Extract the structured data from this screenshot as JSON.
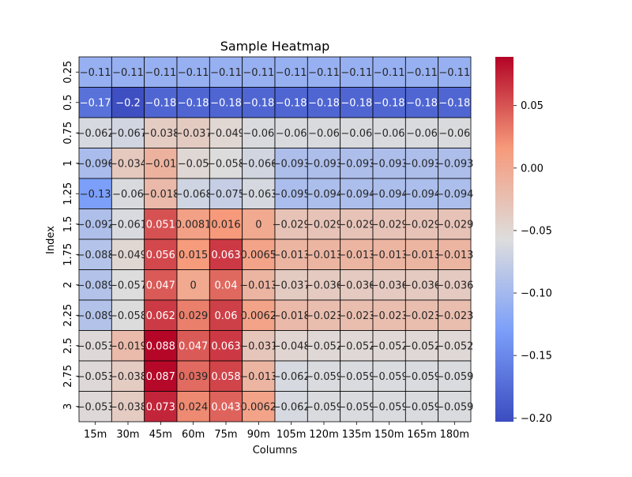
{
  "chart_data": {
    "type": "heatmap",
    "title": "Sample Heatmap",
    "xlabel": "Columns",
    "ylabel": "Index",
    "columns": [
      "15m",
      "30m",
      "45m",
      "60m",
      "75m",
      "90m",
      "105m",
      "120m",
      "135m",
      "150m",
      "165m",
      "180m"
    ],
    "rows": [
      "0.25",
      "0.5",
      "0.75",
      "1",
      "1.25",
      "1.5",
      "1.75",
      "2",
      "2.25",
      "2.5",
      "2.75",
      "3"
    ],
    "values": [
      [
        -0.11,
        -0.11,
        -0.11,
        -0.11,
        -0.11,
        -0.11,
        -0.11,
        -0.11,
        -0.11,
        -0.11,
        -0.11,
        -0.11
      ],
      [
        -0.17,
        -0.2,
        -0.18,
        -0.18,
        -0.18,
        -0.18,
        -0.18,
        -0.18,
        -0.18,
        -0.18,
        -0.18,
        -0.18
      ],
      [
        -0.062,
        -0.067,
        -0.038,
        -0.037,
        -0.049,
        -0.06,
        -0.06,
        -0.06,
        -0.06,
        -0.06,
        -0.06,
        -0.06
      ],
      [
        -0.096,
        -0.034,
        -0.01,
        -0.05,
        -0.058,
        -0.066,
        -0.093,
        -0.093,
        -0.093,
        -0.093,
        -0.093,
        -0.093
      ],
      [
        -0.13,
        -0.06,
        -0.018,
        -0.068,
        -0.075,
        -0.063,
        -0.095,
        -0.094,
        -0.094,
        -0.094,
        -0.094,
        -0.094
      ],
      [
        -0.092,
        -0.061,
        0.051,
        0.0081,
        0.016,
        0,
        -0.029,
        -0.029,
        -0.029,
        -0.029,
        -0.029,
        -0.029
      ],
      [
        -0.088,
        -0.049,
        0.056,
        0.015,
        0.063,
        0.0065,
        -0.013,
        -0.013,
        -0.013,
        -0.013,
        -0.013,
        -0.013
      ],
      [
        -0.089,
        -0.057,
        0.047,
        0,
        0.04,
        -0.013,
        -0.037,
        -0.036,
        -0.036,
        -0.036,
        -0.036,
        -0.036
      ],
      [
        -0.089,
        -0.058,
        0.062,
        0.029,
        0.06,
        0.0062,
        -0.018,
        -0.023,
        -0.023,
        -0.023,
        -0.023,
        -0.023
      ],
      [
        -0.053,
        -0.019,
        0.088,
        0.047,
        0.063,
        -0.031,
        -0.048,
        -0.052,
        -0.052,
        -0.052,
        -0.052,
        -0.052
      ],
      [
        -0.053,
        -0.038,
        0.087,
        0.039,
        0.058,
        -0.013,
        -0.062,
        -0.059,
        -0.059,
        -0.059,
        -0.059,
        -0.059
      ],
      [
        -0.053,
        -0.038,
        0.073,
        0.024,
        0.043,
        0.0062,
        -0.062,
        -0.059,
        -0.059,
        -0.059,
        -0.059,
        -0.059
      ]
    ],
    "colormap": "coolwarm",
    "vmin": -0.203,
    "vmax": 0.089,
    "colorbar_ticks": [
      "0.05",
      "0.00",
      "−0.05",
      "−0.10",
      "−0.15",
      "−0.20"
    ],
    "colorbar_tick_values": [
      0.05,
      0.0,
      -0.05,
      -0.1,
      -0.15,
      -0.2
    ],
    "colorbar_position": "right",
    "cell_border_color": "#000000",
    "grid": false
  }
}
